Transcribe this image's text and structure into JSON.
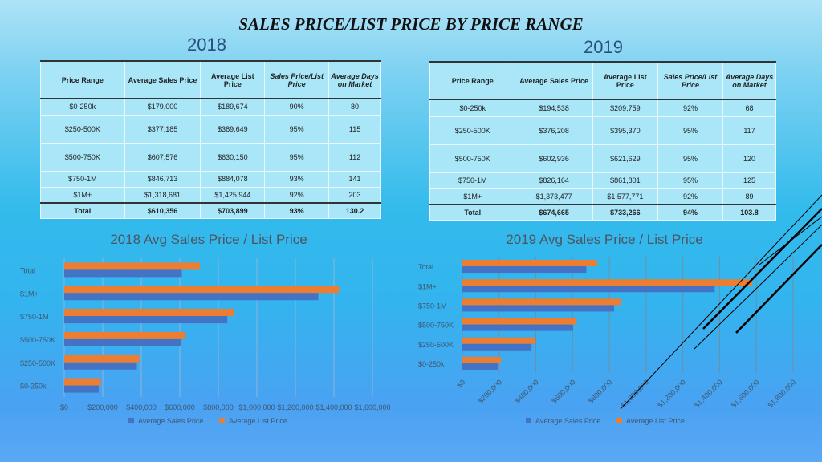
{
  "title": "SALES PRICE/LIST PRICE BY PRICE RANGE",
  "tables": [
    {
      "year": "2018",
      "headers": [
        "Price Range",
        "Average Sales Price",
        "Average List Price",
        "Sales Price/List Price",
        "Average Days on Market"
      ],
      "rows": [
        [
          "$0-250k",
          "$179,000",
          "$189,674",
          "90%",
          "80"
        ],
        [
          "$250-500K",
          "$377,185",
          "$389,649",
          "95%",
          "115"
        ],
        [
          "$500-750K",
          "$607,576",
          "$630,150",
          "95%",
          "112"
        ],
        [
          "$750-1M",
          "$846,713",
          "$884,078",
          "93%",
          "141"
        ],
        [
          "$1M+",
          "$1,318,681",
          "$1,425,944",
          "92%",
          "203"
        ]
      ],
      "total": [
        "Total",
        "$610,356",
        "$703,899",
        "93%",
        "130.2"
      ]
    },
    {
      "year": "2019",
      "headers": [
        "Price Range",
        "Average Sales Price",
        "Average List Price",
        "Sales Price/List Price",
        "Average Days on Market"
      ],
      "rows": [
        [
          "$0-250k",
          "$194,538",
          "$209,759",
          "92%",
          "68"
        ],
        [
          "$250-500K",
          "$376,208",
          "$395,370",
          "95%",
          "117"
        ],
        [
          "$500-750K",
          "$602,936",
          "$621,629",
          "95%",
          "120"
        ],
        [
          "$750-1M",
          "$826,164",
          "$861,801",
          "95%",
          "125"
        ],
        [
          "$1M+",
          "$1,373,477",
          "$1,577,771",
          "92%",
          "89"
        ]
      ],
      "total": [
        "Total",
        "$674,665",
        "$733,266",
        "94%",
        "103.8"
      ]
    }
  ],
  "colors": {
    "sales": "#4472c4",
    "list": "#ed7d31"
  },
  "chart_data": [
    {
      "type": "bar",
      "orientation": "horizontal",
      "title": "2018 Avg Sales Price / List Price",
      "categories": [
        "Total",
        "$1M+",
        "$750-1M",
        "$500-750K",
        "$250-500K",
        "$0-250k"
      ],
      "series": [
        {
          "name": "Average Sales Price",
          "values": [
            610356,
            1318681,
            846713,
            607576,
            377185,
            179000
          ]
        },
        {
          "name": "Average List Price",
          "values": [
            703899,
            1425944,
            884078,
            630150,
            389649,
            189674
          ]
        }
      ],
      "xlim": [
        0,
        1600000
      ],
      "xticks": [
        "$0",
        "$200,000",
        "$400,000",
        "$600,000",
        "$800,000",
        "$1,000,000",
        "$1,200,000",
        "$1,400,000",
        "$1,600,000"
      ],
      "grid": true,
      "legend": "bottom"
    },
    {
      "type": "bar",
      "orientation": "horizontal",
      "title": "2019 Avg Sales Price / List Price",
      "categories": [
        "Total",
        "$1M+",
        "$750-1M",
        "$500-750K",
        "$250-500K",
        "$0-250k"
      ],
      "series": [
        {
          "name": "Average Sales Price",
          "values": [
            674665,
            1373477,
            826164,
            602936,
            376208,
            194538
          ]
        },
        {
          "name": "Average List Price",
          "values": [
            733266,
            1577771,
            861801,
            621629,
            395370,
            209759
          ]
        }
      ],
      "xlim": [
        0,
        1800000
      ],
      "xticks": [
        "$0",
        "$200,000",
        "$400,000",
        "$600,000",
        "$800,000",
        "$1,000,000",
        "$1,200,000",
        "$1,400,000",
        "$1,600,000",
        "$1,800,000"
      ],
      "grid": true,
      "legend": "bottom"
    }
  ]
}
